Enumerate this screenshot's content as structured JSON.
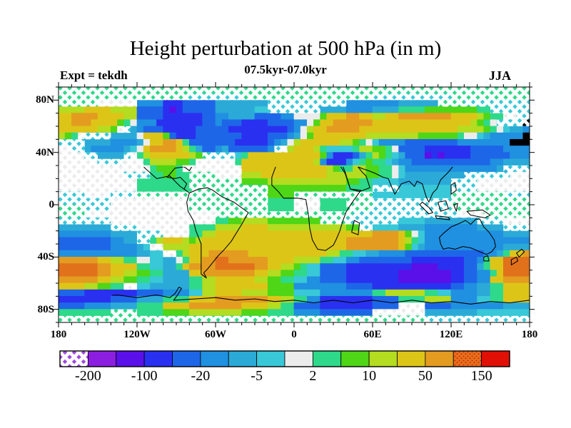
{
  "header": {
    "title": "Height perturbation at 500 hPa (in m)",
    "subtitle": "07.5kyr-07.0kyr",
    "experiment_label": "Expt = tekdh",
    "season_label": "JJA"
  },
  "axes": {
    "lat_ticks": [
      {
        "label": "80N",
        "lat": 80
      },
      {
        "label": "40N",
        "lat": 40
      },
      {
        "label": "0",
        "lat": 0
      },
      {
        "label": "40S",
        "lat": -40
      },
      {
        "label": "80S",
        "lat": -80
      }
    ],
    "lon_ticks": [
      {
        "label": "180",
        "lon": -180
      },
      {
        "label": "120W",
        "lon": -120
      },
      {
        "label": "60W",
        "lon": -60
      },
      {
        "label": "0",
        "lon": 0
      },
      {
        "label": "60E",
        "lon": 60
      },
      {
        "label": "120E",
        "lon": 120
      },
      {
        "label": "180",
        "lon": 180
      }
    ]
  },
  "colorbar": {
    "labels": [
      "-200",
      "-100",
      "-20",
      "-5",
      "2",
      "10",
      "50",
      "150"
    ],
    "segment_colors": [
      "#a04ae0",
      "#8c1ee0",
      "#5a10e8",
      "#2a30f0",
      "#1e66e8",
      "#2090e0",
      "#2baad8",
      "#38c8d8",
      "#ececec",
      "#2ed98a",
      "#4fd616",
      "#b4dc20",
      "#ddc518",
      "#e39c20",
      "#e2711c",
      "#e01006"
    ],
    "hatched_segment_index": 0,
    "speckled_segment_index": 14
  },
  "chart_data": {
    "type": "heatmap",
    "subtype": "filled-contour world map",
    "title": "Height perturbation at 500 hPa (in m)",
    "subtitle": "07.5kyr-07.0kyr",
    "experiment": "tekdh",
    "season": "JJA",
    "units": "m",
    "lon_range": [
      -180,
      180
    ],
    "lat_range": [
      -90,
      90
    ],
    "xlabels": [
      "180",
      "120W",
      "60W",
      "0",
      "60E",
      "120E",
      "180"
    ],
    "ylabels": [
      "80N",
      "40N",
      "0",
      "40S",
      "80S"
    ],
    "level_labels": [
      "-200",
      "-100",
      "-20",
      "-5",
      "2",
      "10",
      "50",
      "150"
    ],
    "palette": [
      "#a04ae0",
      "#8c1ee0",
      "#5a10e8",
      "#2a30f0",
      "#1e66e8",
      "#2090e0",
      "#2baad8",
      "#38c8d8",
      "#ececec",
      "#2ed98a",
      "#4fd616",
      "#b4dc20",
      "#ddc518",
      "#e39c20",
      "#e2711c",
      "#e01006"
    ],
    "grid_encoding": "36 rows (90N to 90S, 5 deg) x 72 cols (180W to 180E, 5 deg); each hex char is an index into palette (0=strong negative purple ... f=strong positive red); hatch_ranges lists [startCol,endCol] spans of cross-hatched (low-significance) cells per row",
    "grid": [
      "999999999999999999999999999999999999999999999999999999999999999999999999",
      "999999999999999999997777777799999999999999999999777777777777999999999999",
      "999999888888555533344444666666667777777777775555555566666699997777777777",
      "bbbbccccbbbb4444323444446666667777777777666655556666999 9aaaaaaaa99777777",
      "ccddddccccbb4444333333445566664444558888acccddccbbccddddddddccccba998877",
      "ccdddcccca98555333333344544433334444558accddddddcccccccccccccccba987777",
      "ccccccbba876544433333444443333333334 58bccdddddcccccccccccccccbbbba98766 55",
      "ba98777766668ccca4333444444433334445 68accccccccbbbbbbbbaaaaaa98876 55555",
      "77776666555568ccddc94444444333334568bccccccbba9875555444444445555 5555",
      "887765555567 8cddddcb96445644444457 8bcccb97777 9bbaa984444333333344444 5555",
      "888877666678 9bccccccba97777 79ccccccccccca53334 69ba9764442323333444444 5555",
      "888888777788 89bbbbaa98888889cccccccccccb533357 9a99765544444444444455 6666",
      "888888888888889aaa9888888888cccccccccccccba99bbaa99875555555555555566 7777",
      "888888888877779 9aa99999988 88bbbccccccccc cbbbbbbaa998766666666667777778888",
      "888888888888999999999999999 9aaaabbbbbbbbbbbbaa9977776666666677778888 8888",
      "888888888888999999999999999 99999aaaaaaaaaaaa999977777777777777778888 8888",
      "777788887777999999999999999 99999aaaa999999999999777777777777 999999997777",
      "777777778888888888889999999 99999999988889999999977777777777799999999 9999",
      "999977778888888888889999999 99999999988889999999977777777777799999999 9999",
      "999988888888888888888888999 999999999999999999777777777777777788889999 9999",
      "777777778888888888888888 99aabbbbaaaaaaaa999977777777777766666666777 78888",
      "666666667777888888889999bbbbcccc bbbbbbbbbbbbaa7777776666555555556666 7777",
      "555555556666777788889 9bbccccccccccccccccccccccccddddca87555555555555 6666",
      "444444445566779bcccbabccccccccc cccccccccccccdddddddd cb9755555555555 55555",
      "444444445555678 8bbbbccccccccccccccccccccccccdddddddd ca7655555555555 56666",
      "555555555555667788 9bcccdddddd ccccccccccccbb997766555544444444444455 69ccdd",
      "ddddddccbb998877668 9ccddeedddddd ccccbbbb99775544444444333333334459 cceeee",
      "eeeeeeddcccc9977669cdddd eeeeeeddccbba97744443333333333222233334469 cceeee",
      "eeeeeeddccbbaa996666cc ddddddddccbbaa99774444333333332222222233445 59ceeee",
      "ddddddccbbaa997766669 9bbccccccbbaa9977554444333333332222222233445 5ccdddd",
      "ccccbbaa998877666666 99bbccccccccaaaa555555554444333333333333445566 99cccc",
      "444433333333444455557 7bbccccbbbbaaaa7777555555559 9bbbbbb997755556 699cccc",
      "333333334444666699 99ccccdddddddd ccbb995533333333444499 99bbbb55557 799cccc",
      "444455556666999 9ccccddddddddcccc bb99444433333333444488 88444455555 5556666",
      "99999999999999 99aaaabbbbbbbbaaaa999955554444444488888888666666667 7777777",
      "999999999999999999999999999999999999999999999999999999997777777777777777"
    ],
    "hatch_ranges": [
      [
        [
          0,
          71
        ]
      ],
      [
        [
          0,
          71
        ]
      ],
      [
        [
          0,
          11
        ],
        [
          32,
          43
        ],
        [
          58,
          71
        ]
      ],
      [
        [
          32,
          39
        ],
        [
          66,
          71
        ]
      ],
      [
        [
          68,
          71
        ]
      ],
      [
        [
          67,
          71
        ]
      ],
      [
        [
          9,
          10
        ]
      ],
      [
        [
          3,
          7
        ]
      ],
      [
        [
          0,
          3
        ]
      ],
      [
        [
          0,
          3
        ],
        [
          33,
          34
        ]
      ],
      [
        [
          0,
          5
        ],
        [
          10,
          11
        ],
        [
          22,
          26
        ]
      ],
      [
        [
          0,
          12
        ],
        [
          21,
          26
        ]
      ],
      [
        [
          0,
          13
        ],
        [
          19,
          27
        ],
        [
          68,
          71
        ]
      ],
      [
        [
          0,
          13
        ],
        [
          20,
          27
        ],
        [
          62,
          71
        ]
      ],
      [
        [
          0,
          11
        ],
        [
          20,
          27
        ],
        [
          60,
          71
        ]
      ],
      [
        [
          0,
          11
        ],
        [
          20,
          31
        ],
        [
          48,
          51
        ],
        [
          60,
          71
        ]
      ],
      [
        [
          0,
          31
        ],
        [
          36,
          47
        ],
        [
          60,
          71
        ]
      ],
      [
        [
          0,
          31
        ],
        [
          36,
          39
        ],
        [
          44,
          71
        ]
      ],
      [
        [
          0,
          31
        ],
        [
          36,
          39
        ],
        [
          44,
          71
        ]
      ],
      [
        [
          0,
          71
        ]
      ],
      [
        [
          0,
          23
        ],
        [
          40,
          51
        ],
        [
          64,
          71
        ]
      ],
      [
        [
          8,
          19
        ],
        [
          46,
          47
        ],
        [
          68,
          71
        ]
      ],
      [
        [
          12,
          19
        ]
      ],
      [
        [
          12,
          13
        ]
      ],
      [
        [
          14,
          15
        ]
      ],
      [
        [
          16,
          17
        ]
      ],
      [],
      [],
      [],
      [],
      [
        [
          10,
          11
        ]
      ],
      [],
      [],
      [
        [
          52,
          55
        ]
      ],
      [
        [
          8,
          11
        ],
        [
          48,
          55
        ]
      ],
      [
        [
          0,
          71
        ]
      ]
    ]
  }
}
